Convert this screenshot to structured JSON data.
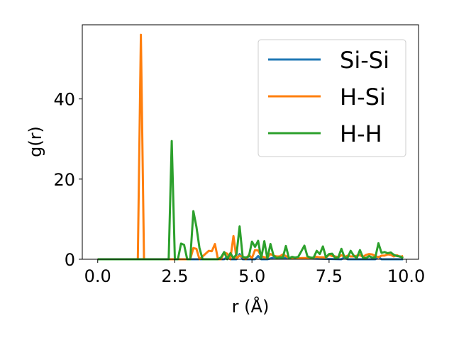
{
  "chart_data": {
    "type": "line",
    "xlabel": "r (Å)",
    "ylabel": "g(r)",
    "xlim": [
      -0.5,
      10.4
    ],
    "ylim": [
      0,
      58.5
    ],
    "xticks": [
      "0.0",
      "2.5",
      "5.0",
      "7.5",
      "10.0"
    ],
    "xtick_values": [
      0,
      2.5,
      5,
      7.5,
      10
    ],
    "yticks": [
      "0",
      "20",
      "40"
    ],
    "ytick_values": [
      0,
      20,
      40
    ],
    "grid": false,
    "legend_position": "top-right",
    "series": [
      {
        "name": "Si-Si",
        "color": "#1f77b4",
        "x": [
          0,
          4.1,
          4.2,
          4.3,
          4.5,
          4.6,
          4.7,
          5.1,
          5.2,
          5.3,
          5.5,
          5.7,
          7.9,
          8.0,
          8.1,
          9.0,
          9.1,
          9.2,
          9.9
        ],
        "y": [
          0,
          0,
          0.6,
          0,
          0,
          1.3,
          0,
          0,
          0.8,
          0,
          0,
          0.4,
          0,
          0.5,
          0,
          0,
          0.6,
          0,
          0
        ]
      },
      {
        "name": "H-Si",
        "color": "#ff7f0e",
        "x": [
          0,
          1.3,
          1.4,
          1.5,
          3.0,
          3.1,
          3.2,
          3.3,
          3.6,
          3.7,
          3.8,
          3.9,
          4.0,
          4.1,
          4.2,
          4.3,
          4.4,
          4.5,
          4.6,
          4.7,
          4.8,
          4.9,
          5.0,
          5.1,
          5.2,
          5.3,
          5.4,
          5.5,
          5.6,
          5.7,
          5.8,
          5.9,
          6.0,
          6.1,
          6.2,
          6.3,
          6.4,
          6.5,
          6.6,
          6.7,
          6.8,
          6.9,
          7.0,
          7.1,
          7.2,
          7.3,
          7.4,
          7.5,
          7.6,
          7.7,
          7.8,
          7.9,
          8.0,
          8.1,
          8.2,
          8.3,
          8.4,
          8.5,
          8.6,
          8.7,
          8.8,
          8.9,
          9.0,
          9.1,
          9.2,
          9.3,
          9.4,
          9.5,
          9.6,
          9.7,
          9.8,
          9.9
        ],
        "y": [
          0,
          0,
          56,
          0,
          0,
          2.8,
          2.6,
          0,
          2.1,
          2.0,
          3.8,
          0,
          0,
          1.7,
          1.4,
          0,
          5.8,
          0.2,
          0.9,
          0.6,
          0,
          1.1,
          0.3,
          2.3,
          2.2,
          0.8,
          0.5,
          0.4,
          1.3,
          0.9,
          0.7,
          0.7,
          1.2,
          0.8,
          0.3,
          0.3,
          0.4,
          0.2,
          0.3,
          0.3,
          0.3,
          0.2,
          0.4,
          0.6,
          0.5,
          0.5,
          0.4,
          1.1,
          0.8,
          0.7,
          0.5,
          1.0,
          0.6,
          0.9,
          0.7,
          0.7,
          0.9,
          1.0,
          0.6,
          1.1,
          1.3,
          1.2,
          0.8,
          0.5,
          0.9,
          0.9,
          1.2,
          1.1,
          0.7,
          1.0,
          0.6,
          0.8
        ]
      },
      {
        "name": "H-H",
        "color": "#2ca02c",
        "x": [
          0,
          2.3,
          2.4,
          2.5,
          2.6,
          2.7,
          2.8,
          2.9,
          3.0,
          3.1,
          3.2,
          3.3,
          3.4,
          3.5,
          3.6,
          3.7,
          3.8,
          3.9,
          4.0,
          4.1,
          4.2,
          4.3,
          4.4,
          4.5,
          4.6,
          4.7,
          4.8,
          4.9,
          5.0,
          5.1,
          5.2,
          5.3,
          5.4,
          5.5,
          5.6,
          5.7,
          5.8,
          5.9,
          6.0,
          6.1,
          6.2,
          6.3,
          6.4,
          6.5,
          6.6,
          6.7,
          6.8,
          6.9,
          7.0,
          7.1,
          7.2,
          7.3,
          7.4,
          7.5,
          7.6,
          7.7,
          7.8,
          7.9,
          8.0,
          8.1,
          8.2,
          8.3,
          8.4,
          8.5,
          8.6,
          8.7,
          8.8,
          8.9,
          9.0,
          9.1,
          9.2,
          9.3,
          9.4,
          9.5,
          9.6,
          9.7,
          9.8,
          9.9
        ],
        "y": [
          0,
          0,
          29.5,
          0,
          0,
          3.9,
          3.6,
          0,
          0,
          12.0,
          8.1,
          2.8,
          0,
          0,
          0,
          0,
          0,
          0,
          0.5,
          1.8,
          0,
          1.5,
          0.3,
          1.2,
          8.2,
          0.6,
          0.4,
          0.7,
          4.4,
          3.1,
          4.6,
          0.2,
          4.5,
          0.2,
          3.8,
          0.9,
          0.3,
          0.5,
          0.4,
          3.3,
          0.2,
          0.6,
          0.4,
          0.6,
          2.0,
          3.4,
          0.7,
          0.4,
          0.4,
          2.1,
          1.3,
          3.2,
          0.5,
          1.3,
          1.4,
          0.3,
          0.5,
          2.6,
          0.5,
          0.4,
          2.1,
          0.9,
          0.3,
          2.3,
          0.4,
          0.3,
          0.8,
          0.4,
          0.5,
          4.0,
          1.6,
          1.8,
          1.5,
          1.7,
          1.1,
          0.8,
          0.7,
          0.3
        ]
      }
    ]
  }
}
